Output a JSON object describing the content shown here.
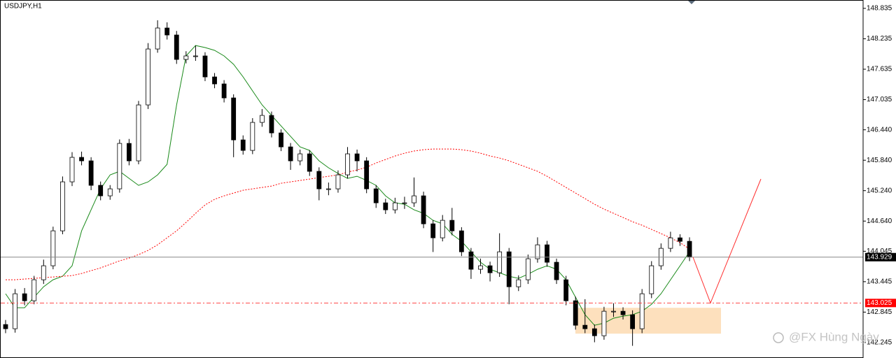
{
  "chart_data": {
    "type": "candlestick",
    "title": "USDJPY,H1",
    "ylim": [
      141.94,
      149.0
    ],
    "yticks": [
      148.835,
      148.235,
      147.635,
      147.035,
      {
        "value": 146.44,
        "label": "146.440"
      },
      {
        "value": 145.84,
        "label": "145.840"
      },
      {
        "value": 145.24,
        "label": "145.240"
      },
      {
        "value": 144.64,
        "label": "144.640"
      },
      144.045,
      143.445,
      142.845,
      142.245
    ],
    "open": [
      142.6,
      142.517,
      143.207,
      143.069,
      143.483,
      143.759,
      144.448,
      145.414,
      145.897,
      145.828,
      145.345,
      145.138,
      145.276,
      146.172,
      145.828,
      146.931,
      148.034,
      148.448,
      148.31,
      147.828,
      147.897,
      147.897,
      147.483,
      147.345,
      147.069,
      146.241,
      146.034,
      146.586,
      146.724,
      146.379,
      146.103,
      145.828,
      145.966,
      145.621,
      145.276,
      145.276,
      145.552,
      145.966,
      145.828,
      145.276,
      145.0,
      144.862,
      145.0,
      145.0,
      145.138,
      144.586,
      144.31,
      144.655,
      144.448,
      144.034,
      143.69,
      143.759,
      143.621,
      144.034,
      143.345,
      143.483,
      143.897,
      144.172,
      143.828,
      143.483,
      143.069,
      142.586,
      142.517,
      142.379,
      142.862,
      142.862,
      142.793,
      142.517,
      143.207,
      143.759,
      144.103,
      144.31,
      144.241
    ],
    "high": [
      142.69,
      143.3,
      143.32,
      143.56,
      143.88,
      144.53,
      145.52,
      146.0,
      146.01,
      145.9,
      145.42,
      145.35,
      146.25,
      146.26,
      147.01,
      148.15,
      148.6,
      148.56,
      148.39,
      147.99,
      148.1,
      147.97,
      147.56,
      147.42,
      147.14,
      146.33,
      146.67,
      146.85,
      146.8,
      146.45,
      146.18,
      146.05,
      146.04,
      145.7,
      145.4,
      145.64,
      146.1,
      146.05,
      145.9,
      145.35,
      145.08,
      145.1,
      145.12,
      145.5,
      145.22,
      144.66,
      144.76,
      144.9,
      144.52,
      144.11,
      143.9,
      143.84,
      144.4,
      144.11,
      143.57,
      143.98,
      144.32,
      144.25,
      143.9,
      143.56,
      143.15,
      143.1,
      142.6,
      142.95,
      143.02,
      142.94,
      142.88,
      143.3,
      143.85,
      144.2,
      144.43,
      144.38,
      144.32
    ],
    "low": [
      142.43,
      142.44,
      142.98,
      143.0,
      143.4,
      143.69,
      144.38,
      145.33,
      145.74,
      145.25,
      145.05,
      145.06,
      145.2,
      145.74,
      145.76,
      146.85,
      147.96,
      148.22,
      147.74,
      147.75,
      147.8,
      147.4,
      147.26,
      146.98,
      145.9,
      145.95,
      145.96,
      146.5,
      146.29,
      146.02,
      145.65,
      145.74,
      145.53,
      145.05,
      145.15,
      145.2,
      145.48,
      145.62,
      145.19,
      144.9,
      144.78,
      144.79,
      144.88,
      144.92,
      144.5,
      144.03,
      144.24,
      144.36,
      143.95,
      143.5,
      143.6,
      143.45,
      143.54,
      143.0,
      143.26,
      143.4,
      143.82,
      143.74,
      143.4,
      142.98,
      142.5,
      142.43,
      142.25,
      142.3,
      142.75,
      142.7,
      142.18,
      142.43,
      143.12,
      143.68,
      144.03,
      144.15,
      143.85
    ],
    "close": [
      142.517,
      143.207,
      143.069,
      143.483,
      143.759,
      144.448,
      145.414,
      145.897,
      145.828,
      145.345,
      145.138,
      145.276,
      146.172,
      145.828,
      146.931,
      148.034,
      148.448,
      148.31,
      147.828,
      147.897,
      147.897,
      147.483,
      147.345,
      147.069,
      146.241,
      146.034,
      146.586,
      146.724,
      146.379,
      146.103,
      145.828,
      145.966,
      145.621,
      145.276,
      145.276,
      145.552,
      145.966,
      145.828,
      145.276,
      145.0,
      144.862,
      145.0,
      145.0,
      145.138,
      144.586,
      144.31,
      144.655,
      144.448,
      144.034,
      143.69,
      143.759,
      143.621,
      144.034,
      143.345,
      143.483,
      143.897,
      144.172,
      143.828,
      143.483,
      143.069,
      142.586,
      142.517,
      142.379,
      142.862,
      142.862,
      142.793,
      142.517,
      143.207,
      143.759,
      144.103,
      144.31,
      144.241,
      143.929
    ],
    "indicators": [
      {
        "color": "#1a8a1a",
        "style": "solid",
        "values": [
          143.207,
          142.931,
          142.931,
          143.138,
          143.345,
          143.483,
          143.552,
          143.759,
          144.448,
          144.862,
          145.276,
          145.552,
          145.621,
          145.483,
          145.345,
          145.414,
          145.552,
          145.759,
          146.931,
          147.897,
          148.103,
          148.062,
          148.007,
          147.897,
          147.731,
          147.483,
          147.207,
          146.931,
          146.724,
          146.517,
          146.31,
          146.103,
          146.034,
          145.828,
          145.69,
          145.579,
          145.483,
          145.524,
          145.441,
          145.345,
          145.138,
          145.0,
          144.972,
          144.862,
          144.793,
          144.655,
          144.586,
          144.379,
          144.241,
          144.034,
          143.828,
          143.69,
          143.621,
          143.552,
          143.51,
          143.593,
          143.69,
          143.759,
          143.69,
          143.483,
          143.138,
          142.793,
          142.586,
          142.628,
          142.724,
          142.766,
          142.793,
          142.862,
          143.0,
          143.207,
          143.483,
          143.759,
          144.034
        ]
      },
      {
        "color": "#ff0000",
        "style": "dotted",
        "values": [
          143.483,
          143.483,
          143.497,
          143.51,
          143.524,
          143.538,
          143.552,
          143.566,
          143.607,
          143.662,
          143.717,
          143.786,
          143.855,
          143.91,
          143.979,
          144.062,
          144.172,
          144.31,
          144.448,
          144.614,
          144.793,
          144.959,
          145.069,
          145.138,
          145.193,
          145.248,
          145.276,
          145.303,
          145.331,
          145.386,
          145.414,
          145.441,
          145.469,
          145.497,
          145.524,
          145.552,
          145.607,
          145.648,
          145.703,
          145.786,
          145.855,
          145.924,
          145.979,
          146.021,
          146.048,
          146.062,
          146.062,
          146.062,
          146.048,
          146.021,
          145.979,
          145.924,
          145.883,
          145.828,
          145.759,
          145.69,
          145.621,
          145.524,
          145.414,
          145.303,
          145.193,
          145.083,
          144.972,
          144.876,
          144.793,
          144.71,
          144.628,
          144.559,
          144.476,
          144.393,
          144.31,
          144.214,
          144.09
        ]
      }
    ],
    "hlines": [
      {
        "value": 143.929,
        "color": "#888888",
        "style": "solid",
        "label_color": "#000000"
      },
      {
        "value": 143.025,
        "color": "#ff4444",
        "style": "dashdot",
        "label_color": "#ff0000"
      }
    ],
    "zone": {
      "ymin": 142.42,
      "ymax": 142.93,
      "color": "#fde0bd"
    },
    "projection": {
      "color": "#ff3030",
      "values": [
        143.929,
        143.025,
        145.47
      ]
    },
    "watermark": "@FX Hùng Ngày"
  }
}
